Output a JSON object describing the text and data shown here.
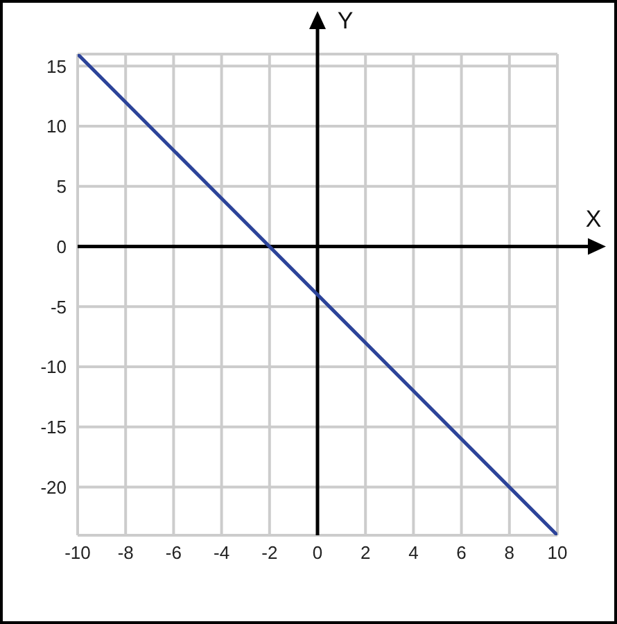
{
  "chart_data": {
    "type": "line",
    "xlabel": "X",
    "ylabel": "Y",
    "series": [
      {
        "color": "#2c4399",
        "x": [
          -10,
          10
        ],
        "values": [
          16,
          -24
        ]
      }
    ],
    "xlim": [
      -10,
      10
    ],
    "xticks": [
      -10,
      -8,
      -6,
      -4,
      -2,
      0,
      2,
      4,
      6,
      8,
      10
    ],
    "ylim": [
      -24,
      16
    ],
    "yticks": [
      -20,
      -15,
      -10,
      -5,
      0,
      5,
      10,
      15
    ],
    "grid": true,
    "line_style": "solid"
  }
}
